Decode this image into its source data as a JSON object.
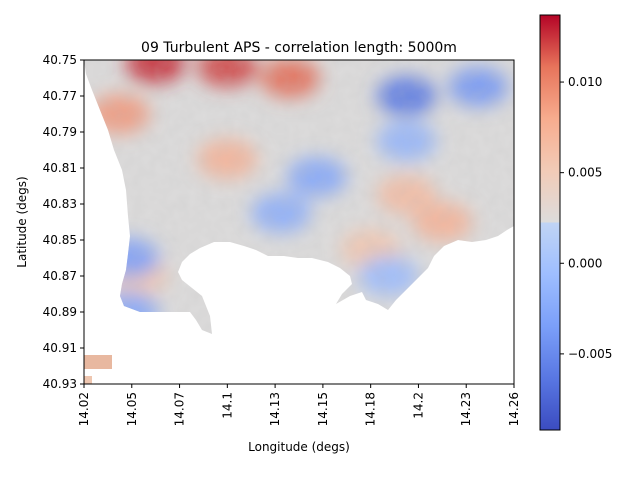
{
  "chart_data": {
    "type": "heatmap",
    "title": "09 Turbulent APS - correlation length: 5000m",
    "xlabel": "Longitude (degs)",
    "ylabel": "Latitude (degs)",
    "xlim": [
      14.02,
      14.26
    ],
    "ylim": [
      40.75,
      40.93
    ],
    "y_inverted": true,
    "x_ticks": [
      "14.02",
      "14.05",
      "14.07",
      "14.1",
      "14.13",
      "14.15",
      "14.18",
      "14.2",
      "14.23",
      "14.26"
    ],
    "y_ticks": [
      "40.75",
      "40.77",
      "40.79",
      "40.81",
      "40.83",
      "40.85",
      "40.87",
      "40.89",
      "40.91",
      "40.93"
    ],
    "colormap": "coolwarm",
    "colorbar": {
      "min": -0.0092,
      "max": 0.0137,
      "ticks": [
        {
          "value": -0.005,
          "label": "−0.005"
        },
        {
          "value": 0.0,
          "label": "0.000"
        },
        {
          "value": 0.005,
          "label": "0.005"
        },
        {
          "value": 0.01,
          "label": "0.010"
        }
      ]
    },
    "field_features": [
      {
        "label": "warm maximum",
        "lon": 14.06,
        "lat": 40.752,
        "value": 0.0125
      },
      {
        "label": "warm maximum",
        "lon": 14.1,
        "lat": 40.754,
        "value": 0.0118
      },
      {
        "label": "warm",
        "lon": 14.135,
        "lat": 40.76,
        "value": 0.0105
      },
      {
        "label": "warm",
        "lon": 14.04,
        "lat": 40.78,
        "value": 0.008
      },
      {
        "label": "warm",
        "lon": 14.1,
        "lat": 40.805,
        "value": 0.006
      },
      {
        "label": "warm",
        "lon": 14.22,
        "lat": 40.84,
        "value": 0.006
      },
      {
        "label": "warm",
        "lon": 14.2,
        "lat": 40.825,
        "value": 0.005
      },
      {
        "label": "warm",
        "lon": 14.18,
        "lat": 40.855,
        "value": 0.004
      },
      {
        "label": "warm",
        "lon": 14.05,
        "lat": 40.87,
        "value": 0.004
      },
      {
        "label": "cool minimum",
        "lon": 14.2,
        "lat": 40.77,
        "value": -0.0068
      },
      {
        "label": "cool",
        "lon": 14.24,
        "lat": 40.765,
        "value": -0.005
      },
      {
        "label": "cool",
        "lon": 14.15,
        "lat": 40.815,
        "value": -0.004
      },
      {
        "label": "cool",
        "lon": 14.13,
        "lat": 40.835,
        "value": -0.0035
      },
      {
        "label": "cool",
        "lon": 14.045,
        "lat": 40.86,
        "value": -0.0045
      },
      {
        "label": "cool",
        "lon": 14.045,
        "lat": 40.89,
        "value": -0.004
      },
      {
        "label": "cool",
        "lon": 14.2,
        "lat": 40.795,
        "value": -0.003
      },
      {
        "label": "cool",
        "lon": 14.19,
        "lat": 40.87,
        "value": -0.0025
      }
    ]
  }
}
